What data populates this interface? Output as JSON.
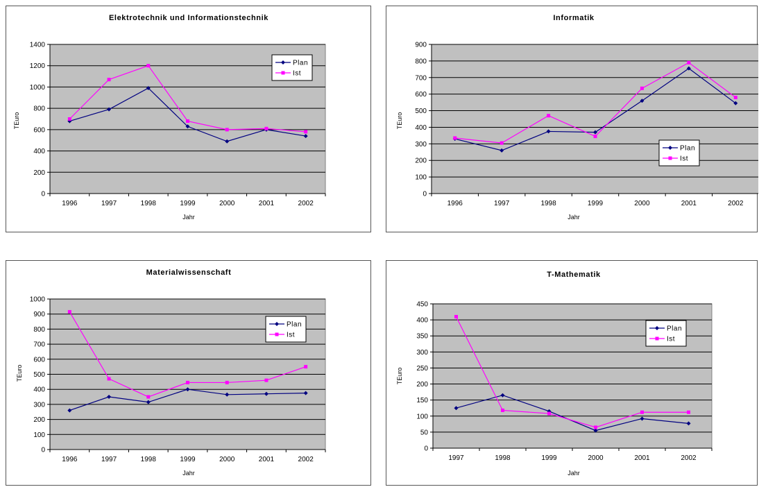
{
  "colors": {
    "plot_bg": "#c0c0c0",
    "plan": "#000080",
    "ist": "#ff00ff",
    "grid": "#000000"
  },
  "chart_data": [
    {
      "type": "line",
      "title": "Elektrotechnik und Informationstechnik",
      "xlabel": "Jahr",
      "ylabel": "TEuro",
      "categories": [
        "1996",
        "1997",
        "1998",
        "1999",
        "2000",
        "2001",
        "2002"
      ],
      "ylim": [
        0,
        1400
      ],
      "yticks": [
        0,
        200,
        400,
        600,
        800,
        1000,
        1200,
        1400
      ],
      "grid": true,
      "legend": "top-right",
      "series": [
        {
          "name": "Plan",
          "values": [
            680,
            790,
            990,
            630,
            490,
            600,
            540
          ]
        },
        {
          "name": "Ist",
          "values": [
            700,
            1070,
            1200,
            680,
            600,
            610,
            580
          ]
        }
      ]
    },
    {
      "type": "line",
      "title": "Informatik",
      "xlabel": "Jahr",
      "ylabel": "TEuro",
      "categories": [
        "1996",
        "1997",
        "1998",
        "1999",
        "2000",
        "2001",
        "2002"
      ],
      "ylim": [
        0,
        900
      ],
      "yticks": [
        0,
        100,
        200,
        300,
        400,
        500,
        600,
        700,
        800,
        900
      ],
      "grid": true,
      "legend": "right",
      "series": [
        {
          "name": "Plan",
          "values": [
            330,
            260,
            375,
            370,
            560,
            755,
            545
          ]
        },
        {
          "name": "Ist",
          "values": [
            335,
            305,
            470,
            345,
            635,
            790,
            580
          ]
        }
      ]
    },
    {
      "type": "line",
      "title": "Materialwissenschaft",
      "xlabel": "Jahr",
      "ylabel": "TEuro",
      "categories": [
        "1996",
        "1997",
        "1998",
        "1999",
        "2000",
        "2001",
        "2002"
      ],
      "ylim": [
        0,
        1000
      ],
      "yticks": [
        0,
        100,
        200,
        300,
        400,
        500,
        600,
        700,
        800,
        900,
        1000
      ],
      "grid": true,
      "legend": "top-right",
      "series": [
        {
          "name": "Plan",
          "values": [
            260,
            350,
            315,
            400,
            365,
            370,
            375
          ]
        },
        {
          "name": "Ist",
          "values": [
            915,
            470,
            350,
            445,
            445,
            460,
            550
          ]
        }
      ]
    },
    {
      "type": "line",
      "title": "T-Mathematik",
      "xlabel": "Jahr",
      "ylabel": "TEuro",
      "categories": [
        "1997",
        "1998",
        "1999",
        "2000",
        "2001",
        "2002"
      ],
      "ylim": [
        0,
        450
      ],
      "yticks": [
        0,
        50,
        100,
        150,
        200,
        250,
        300,
        350,
        400,
        450
      ],
      "grid": true,
      "legend": "top-right",
      "series": [
        {
          "name": "Plan",
          "values": [
            125,
            165,
            115,
            55,
            92,
            77
          ]
        },
        {
          "name": "Ist",
          "values": [
            410,
            118,
            108,
            65,
            112,
            112
          ]
        }
      ]
    }
  ]
}
